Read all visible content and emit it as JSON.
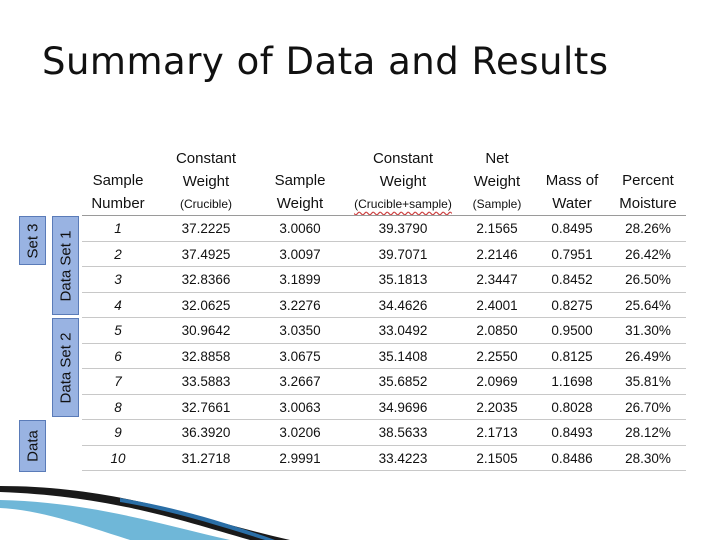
{
  "title": "Summary of Data and Results",
  "side_labels": {
    "set3": "Set 3",
    "data_set_1": "Data Set 1",
    "data_set_2": "Data Set 2",
    "data": "Data"
  },
  "headers": [
    {
      "lines": [
        "Sample",
        "Number"
      ],
      "sub": ""
    },
    {
      "lines": [
        "Constant",
        "Weight"
      ],
      "sub": "(Crucible)"
    },
    {
      "lines": [
        "Sample",
        "Weight"
      ],
      "sub": ""
    },
    {
      "lines": [
        "Constant",
        "Weight"
      ],
      "sub": "(Crucible+sample)"
    },
    {
      "lines": [
        "Net",
        "Weight"
      ],
      "sub": "(Sample)"
    },
    {
      "lines": [
        "Mass of",
        "Water"
      ],
      "sub": ""
    },
    {
      "lines": [
        "Percent",
        "Moisture"
      ],
      "sub": ""
    }
  ],
  "rows": [
    [
      "1",
      "37.2225",
      "3.0060",
      "39.3790",
      "2.1565",
      "0.8495",
      "28.26%"
    ],
    [
      "2",
      "37.4925",
      "3.0097",
      "39.7071",
      "2.2146",
      "0.7951",
      "26.42%"
    ],
    [
      "3",
      "32.8366",
      "3.1899",
      "35.1813",
      "2.3447",
      "0.8452",
      "26.50%"
    ],
    [
      "4",
      "32.0625",
      "3.2276",
      "34.4626",
      "2.4001",
      "0.8275",
      "25.64%"
    ],
    [
      "5",
      "30.9642",
      "3.0350",
      "33.0492",
      "2.0850",
      "0.9500",
      "31.30%"
    ],
    [
      "6",
      "32.8858",
      "3.0675",
      "35.1408",
      "2.2550",
      "0.8125",
      "26.49%"
    ],
    [
      "7",
      "33.5883",
      "3.2667",
      "35.6852",
      "2.0969",
      "1.1698",
      "35.81%"
    ],
    [
      "8",
      "32.7661",
      "3.0063",
      "34.9696",
      "2.2035",
      "0.8028",
      "26.70%"
    ],
    [
      "9",
      "36.3920",
      "3.0206",
      "38.5633",
      "2.1713",
      "0.8493",
      "28.12%"
    ],
    [
      "10",
      "31.2718",
      "2.9991",
      "33.4223",
      "2.1505",
      "0.8486",
      "28.30%"
    ]
  ]
}
